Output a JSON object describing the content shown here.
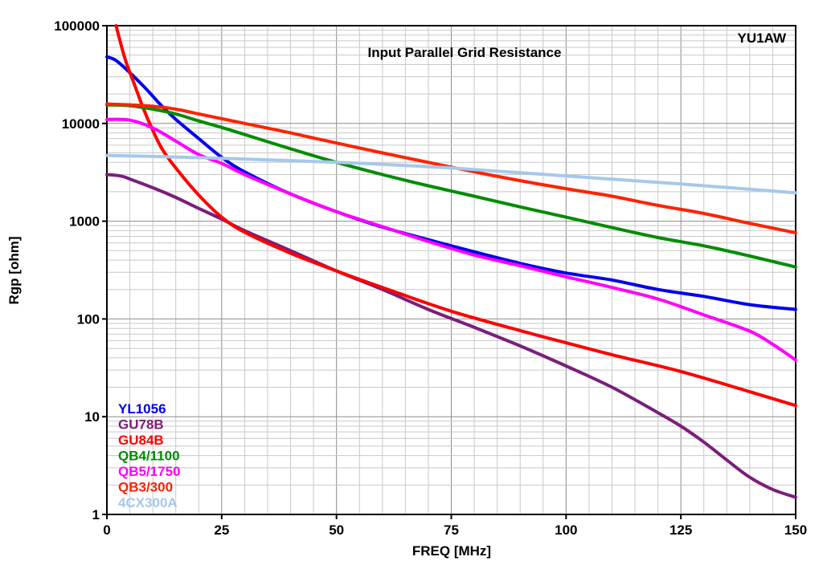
{
  "chart_data": {
    "type": "line",
    "title": "Input Parallel Grid Resistance",
    "annotation": "YU1AW",
    "xlabel": "FREQ [MHz]",
    "ylabel": "Rgp [ohm]",
    "xlim": [
      0,
      150
    ],
    "ylim": [
      1,
      100000
    ],
    "yscale": "log",
    "grid": true,
    "legend_position": "bottom-left",
    "x_ticks": [
      "0",
      "25",
      "50",
      "75",
      "100",
      "125",
      "150"
    ],
    "y_ticks": [
      "1",
      "10",
      "100",
      "1000",
      "10000",
      "100000"
    ],
    "series": [
      {
        "name": "YL1056",
        "color": "#0000ee",
        "x": [
          0,
          2,
          5,
          8,
          10,
          12,
          15,
          20,
          25,
          30,
          40,
          50,
          60,
          75,
          90,
          100,
          110,
          120,
          130,
          140,
          150
        ],
        "y": [
          48000,
          44000,
          33000,
          24000,
          19000,
          15000,
          11000,
          7000,
          4500,
          3200,
          1900,
          1250,
          870,
          560,
          370,
          295,
          250,
          200,
          170,
          140,
          125
        ]
      },
      {
        "name": "GU78B",
        "color": "#7a1f7a",
        "x": [
          0,
          3,
          5,
          10,
          15,
          20,
          25,
          30,
          40,
          50,
          60,
          70,
          80,
          90,
          100,
          110,
          120,
          125,
          130,
          135,
          140,
          145,
          150
        ],
        "y": [
          3000,
          2900,
          2700,
          2200,
          1750,
          1350,
          1050,
          800,
          500,
          310,
          200,
          125,
          82,
          53,
          33,
          20,
          11,
          8,
          5.5,
          3.6,
          2.4,
          1.8,
          1.5
        ]
      },
      {
        "name": "GU84B",
        "color": "#ff0000",
        "x": [
          2,
          4,
          6,
          8,
          10,
          12,
          15,
          20,
          25,
          30,
          40,
          50,
          60,
          75,
          90,
          100,
          110,
          125,
          140,
          150
        ],
        "y": [
          100000,
          45000,
          25000,
          14000,
          8500,
          5500,
          3500,
          1850,
          1100,
          770,
          470,
          310,
          210,
          120,
          76,
          57,
          43,
          29,
          18,
          13
        ]
      },
      {
        "name": "QB4/1100",
        "color": "#008c00",
        "x": [
          0,
          5,
          10,
          15,
          20,
          25,
          30,
          40,
          50,
          60,
          70,
          80,
          90,
          100,
          110,
          120,
          130,
          140,
          150
        ],
        "y": [
          15500,
          15200,
          14000,
          12500,
          10600,
          9100,
          7700,
          5500,
          4000,
          3000,
          2300,
          1800,
          1400,
          1100,
          860,
          680,
          560,
          440,
          340
        ]
      },
      {
        "name": "QB5/1750",
        "color": "#ff00ff",
        "x": [
          0,
          5,
          10,
          15,
          20,
          25,
          30,
          40,
          50,
          60,
          70,
          80,
          90,
          100,
          110,
          120,
          130,
          140,
          145,
          150
        ],
        "y": [
          11000,
          10800,
          9000,
          6600,
          4800,
          3900,
          3000,
          1900,
          1250,
          880,
          620,
          450,
          350,
          270,
          210,
          160,
          110,
          75,
          55,
          38
        ]
      },
      {
        "name": "QB3/300",
        "color": "#ff2200",
        "x": [
          0,
          5,
          10,
          15,
          20,
          30,
          40,
          50,
          60,
          70,
          80,
          90,
          100,
          110,
          120,
          130,
          140,
          150
        ],
        "y": [
          15800,
          15500,
          15000,
          14000,
          12500,
          10000,
          8000,
          6300,
          5000,
          4000,
          3200,
          2600,
          2150,
          1800,
          1450,
          1200,
          950,
          760
        ]
      },
      {
        "name": "4CX300A",
        "color": "#a6c8ea",
        "x": [
          0,
          10,
          25,
          50,
          75,
          100,
          125,
          150
        ],
        "y": [
          4700,
          4600,
          4400,
          4000,
          3500,
          2900,
          2400,
          1950
        ]
      }
    ]
  }
}
